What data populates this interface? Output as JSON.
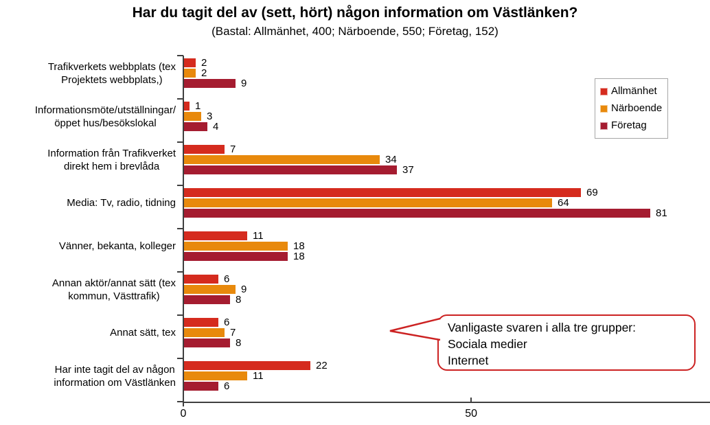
{
  "colors": {
    "axis": "#3f3f3f",
    "callout_border": "#CC2222",
    "allmanhet": "#D52B1E",
    "narboende": "#E8890C",
    "foretag": "#A51C30"
  },
  "callout": {
    "lines": [
      "Vanligaste svaren i alla tre grupper:",
      "Sociala medier",
      "Internet"
    ]
  },
  "chart_data": {
    "type": "bar",
    "orientation": "horizontal",
    "title": "Har du tagit del av (sett, hört) någon information om Västlänken?",
    "subtitle": "(Bastal: Allmänhet, 400; Närboende, 550; Företag, 152)",
    "categories": [
      "Trafikverkets webbplats (tex\nProjektets webbplats,)",
      "Informationsmöte/utställningar/\nöppet hus/besökslokal",
      "Information från Trafikverket\ndirekt hem i brevlåda",
      "Media: Tv, radio, tidning",
      "Vänner, bekanta, kolleger",
      "Annan aktör/annat sätt (tex\nkommun, Västtrafik)",
      "Annat sätt, tex",
      "Har inte tagit del av någon\ninformation om Västlänken"
    ],
    "series": [
      {
        "name": "Allmänhet",
        "color": "#D52B1E",
        "values": [
          2,
          1,
          7,
          69,
          11,
          6,
          6,
          22
        ]
      },
      {
        "name": "Närboende",
        "color": "#E8890C",
        "values": [
          2,
          3,
          34,
          64,
          18,
          9,
          7,
          11
        ]
      },
      {
        "name": "Företag",
        "color": "#A51C30",
        "values": [
          9,
          4,
          37,
          81,
          18,
          8,
          8,
          6
        ]
      }
    ],
    "xlabel": "",
    "ylabel": "",
    "x_ticks": [
      0,
      50
    ],
    "xlim": [
      0,
      91.5
    ],
    "grid": false,
    "data_labels": true,
    "legend_position": "upper right"
  }
}
